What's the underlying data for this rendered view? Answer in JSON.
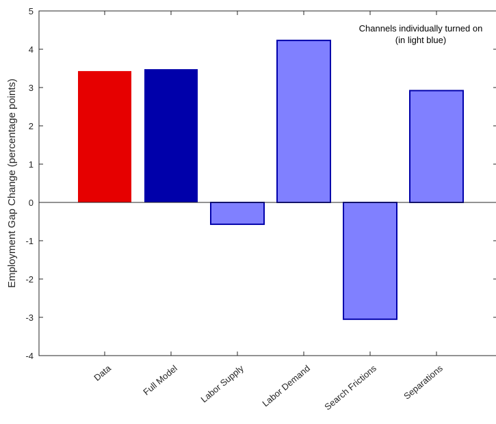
{
  "chart_data": {
    "type": "bar",
    "title": "",
    "xlabel": "",
    "ylabel": "Employment Gap Change (percentage points)",
    "categories": [
      "Data",
      "Full Model",
      "Labor Supply",
      "Labor Demand",
      "Search Frictions",
      "Separations"
    ],
    "values": [
      3.43,
      3.48,
      -0.57,
      4.23,
      -3.05,
      2.92
    ],
    "bar_colors": [
      "#e60000",
      "#0000aa",
      "#8080ff",
      "#8080ff",
      "#8080ff",
      "#8080ff"
    ],
    "bar_edge_color": "#0000aa",
    "ylim": [
      -4,
      5
    ],
    "yticks": [
      -4,
      -3,
      -2,
      -1,
      0,
      1,
      2,
      3,
      4,
      5
    ],
    "ytick_labels": [
      "-4",
      "-3",
      "-2",
      "-1",
      "0",
      "1",
      "2",
      "3",
      "4",
      "5"
    ],
    "grid": false,
    "annotation": [
      "Channels individually turned on",
      "(in light blue)"
    ]
  }
}
